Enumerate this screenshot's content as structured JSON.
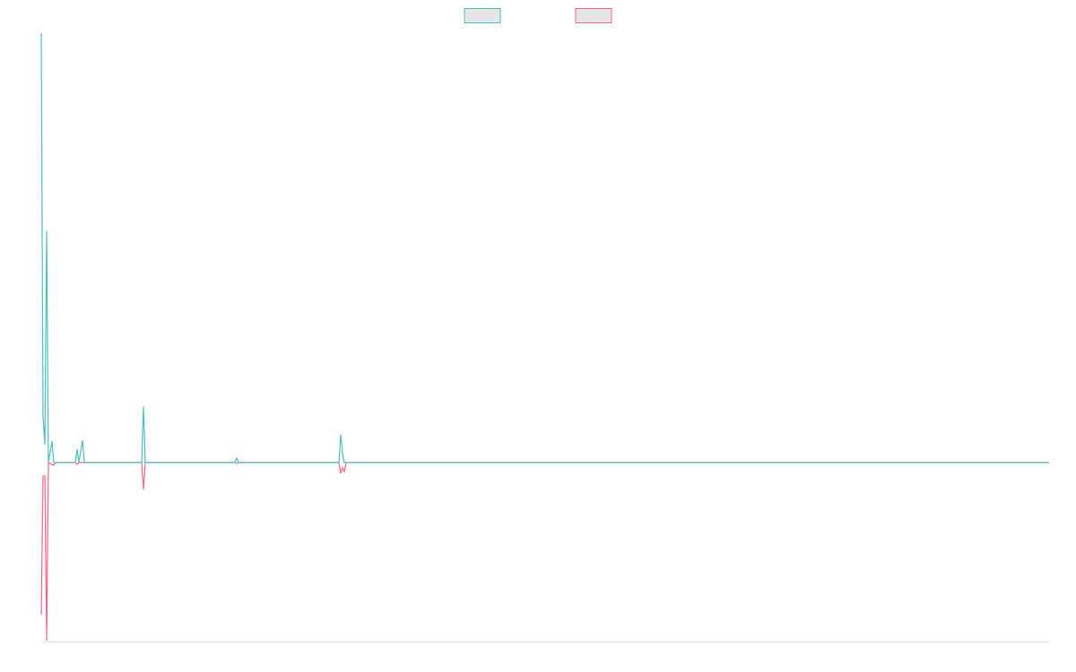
{
  "chart_data": {
    "type": "line",
    "x": [
      0,
      2,
      4,
      6,
      8,
      12,
      14,
      16,
      38,
      40,
      42,
      46,
      48,
      112,
      114,
      116,
      216,
      218,
      220,
      332,
      334,
      336,
      338,
      340,
      438,
      440,
      1124
    ],
    "series": [
      {
        "color": "#ff6384",
        "values": [
          -170,
          -15,
          -15,
          -199,
          0,
          -2,
          -3,
          0,
          0,
          -2,
          0,
          0,
          0,
          0,
          -30,
          0,
          0,
          -1,
          0,
          0,
          -12,
          -6,
          -10,
          0,
          0,
          0,
          0
        ]
      },
      {
        "color": "#4bc0c0",
        "values": [
          480,
          50,
          20,
          259,
          0,
          24,
          0,
          0,
          0,
          15,
          0,
          25,
          0,
          0,
          63,
          0,
          0,
          5,
          0,
          0,
          31,
          10,
          0,
          0,
          0,
          0,
          0
        ]
      }
    ],
    "xlim": [
      0,
      1124
    ],
    "ylim": [
      -200,
      480
    ],
    "legend": "top"
  }
}
